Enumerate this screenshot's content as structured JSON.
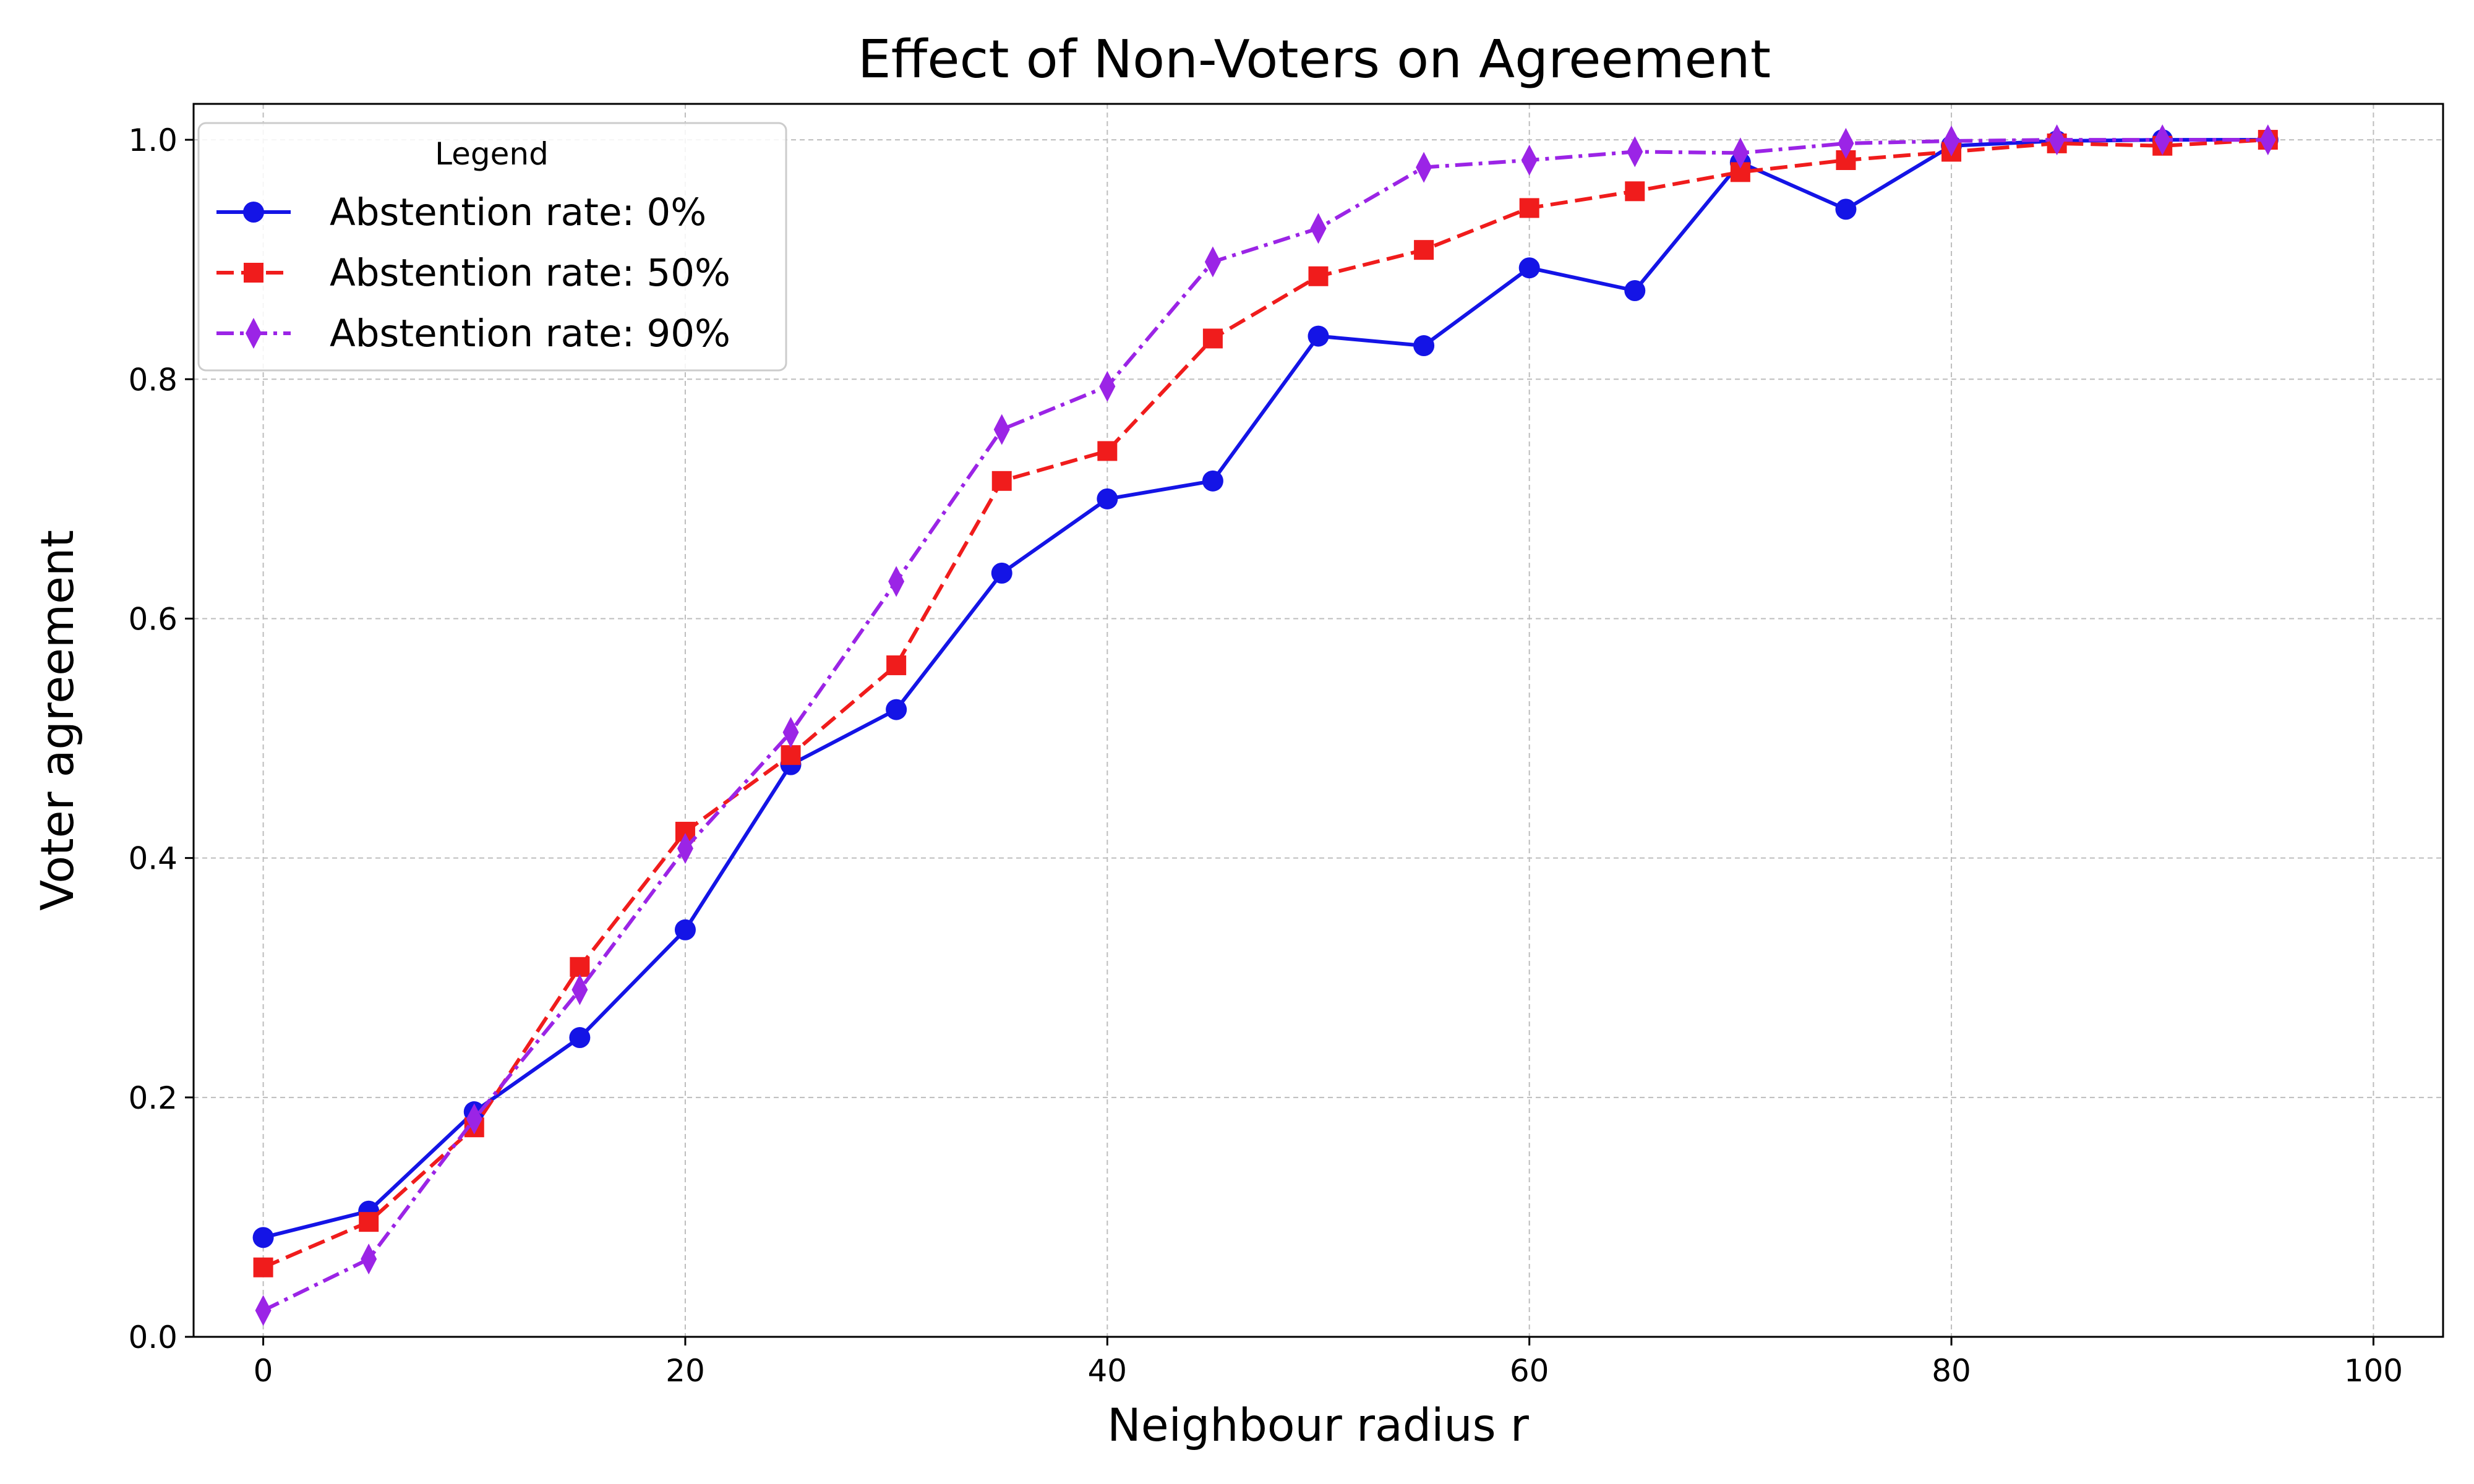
{
  "chart_data": {
    "type": "line",
    "title": "Effect of Non-Voters on Agreement",
    "xlabel": "Neighbour radius r",
    "ylabel": "Voter agreement",
    "xlim": [
      -3.3,
      103.3
    ],
    "ylim": [
      0,
      1.03
    ],
    "xticks": [
      0,
      20,
      40,
      60,
      80,
      100
    ],
    "yticks": [
      0.0,
      0.2,
      0.4,
      0.6,
      0.8,
      1.0
    ],
    "grid": true,
    "legend": {
      "title": "Legend",
      "placement": "top-left"
    },
    "x": [
      0,
      5,
      10,
      15,
      20,
      25,
      30,
      35,
      40,
      45,
      50,
      55,
      60,
      65,
      70,
      75,
      80,
      85,
      90,
      95
    ],
    "series": [
      {
        "name": "Abstention rate: 0%",
        "color": "#1414e6",
        "marker": "circle",
        "dash": "solid",
        "values": [
          0.083,
          0.105,
          0.188,
          0.25,
          0.34,
          0.478,
          0.524,
          0.638,
          0.7,
          0.715,
          0.836,
          0.828,
          0.893,
          0.874,
          0.981,
          0.942,
          0.995,
          0.999,
          1.0,
          1.0
        ]
      },
      {
        "name": "Abstention rate: 50%",
        "color": "#f01c1c",
        "marker": "square",
        "dash": "dashed",
        "values": [
          0.058,
          0.096,
          0.175,
          0.309,
          0.422,
          0.486,
          0.561,
          0.715,
          0.74,
          0.834,
          0.886,
          0.908,
          0.943,
          0.957,
          0.973,
          0.983,
          0.99,
          0.997,
          0.995,
          1.0
        ]
      },
      {
        "name": "Abstention rate: 90%",
        "color": "#9b24e6",
        "marker": "diamond",
        "dash": "dashdot",
        "values": [
          0.022,
          0.065,
          0.182,
          0.29,
          0.408,
          0.505,
          0.631,
          0.758,
          0.794,
          0.898,
          0.926,
          0.977,
          0.983,
          0.99,
          0.989,
          0.997,
          0.999,
          1.0,
          1.0,
          1.0
        ]
      }
    ]
  }
}
